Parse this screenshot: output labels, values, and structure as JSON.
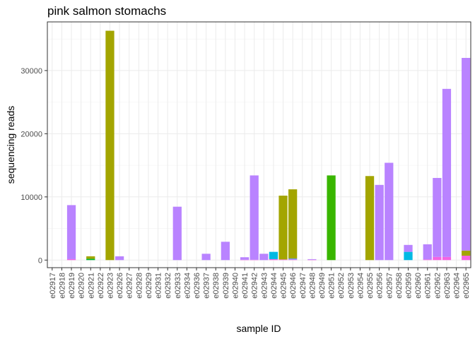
{
  "chart_data": {
    "type": "bar",
    "stacked": true,
    "title": "pink salmon stomachs",
    "xlabel": "sample ID",
    "ylabel": "sequencing reads",
    "ylim": [
      -1200,
      37700
    ],
    "yticks": [
      0,
      10000,
      20000,
      30000
    ],
    "grid": true,
    "legend": "none",
    "categories": [
      "e02917",
      "e02918",
      "e02919",
      "e02920",
      "e02921",
      "e02922",
      "e02923",
      "e02926",
      "e02927",
      "e02928",
      "e02929",
      "e02931",
      "e02932",
      "e02933",
      "e02934",
      "e02936",
      "e02937",
      "e02938",
      "e02939",
      "e02940",
      "e02941",
      "e02942",
      "e02943",
      "e02944",
      "e02945",
      "e02946",
      "e02947",
      "e02948",
      "e02949",
      "e02951",
      "e02952",
      "e02953",
      "e02954",
      "e02955",
      "e02956",
      "e02957",
      "e02958",
      "e02959",
      "e02960",
      "e02961",
      "e02962",
      "e02963",
      "e02964",
      "e02965"
    ],
    "series": [
      {
        "color": "#F564E3",
        "values": [
          0,
          0,
          150,
          0,
          0,
          0,
          0,
          0,
          0,
          0,
          0,
          0,
          0,
          0,
          0,
          0,
          0,
          0,
          0,
          0,
          50,
          50,
          0,
          150,
          100,
          100,
          0,
          50,
          0,
          0,
          0,
          0,
          0,
          0,
          0,
          0,
          0,
          0,
          0,
          100,
          500,
          500,
          0,
          700
        ]
      },
      {
        "color": "#619CFF",
        "values": [
          0,
          0,
          0,
          0,
          0,
          0,
          0,
          0,
          0,
          0,
          0,
          0,
          0,
          0,
          0,
          0,
          0,
          0,
          0,
          0,
          0,
          0,
          0,
          0,
          0,
          150,
          0,
          0,
          0,
          0,
          0,
          0,
          0,
          0,
          0,
          0,
          0,
          0,
          0,
          0,
          0,
          0,
          0,
          0
        ]
      },
      {
        "color": "#00B9E3",
        "values": [
          0,
          0,
          0,
          0,
          0,
          0,
          0,
          0,
          0,
          0,
          0,
          0,
          0,
          0,
          0,
          0,
          0,
          0,
          0,
          0,
          0,
          0,
          0,
          1150,
          0,
          0,
          0,
          0,
          0,
          0,
          0,
          0,
          0,
          0,
          0,
          0,
          0,
          1300,
          0,
          0,
          0,
          0,
          0,
          0
        ]
      },
      {
        "color": "#00BA38",
        "values": [
          0,
          0,
          0,
          0,
          200,
          0,
          0,
          0,
          0,
          0,
          0,
          0,
          0,
          0,
          0,
          0,
          0,
          0,
          0,
          0,
          0,
          0,
          0,
          0,
          0,
          0,
          0,
          0,
          0,
          0,
          0,
          0,
          0,
          0,
          0,
          0,
          0,
          0,
          0,
          0,
          0,
          0,
          0,
          0
        ]
      },
      {
        "color": "#39B600",
        "values": [
          0,
          0,
          0,
          0,
          0,
          0,
          0,
          0,
          0,
          0,
          0,
          0,
          0,
          0,
          0,
          0,
          0,
          0,
          0,
          0,
          0,
          0,
          0,
          0,
          0,
          0,
          0,
          0,
          0,
          13400,
          0,
          0,
          0,
          0,
          0,
          0,
          0,
          0,
          0,
          0,
          0,
          0,
          0,
          0
        ]
      },
      {
        "color": "#A3A500",
        "values": [
          0,
          0,
          0,
          0,
          400,
          0,
          36300,
          0,
          0,
          0,
          0,
          0,
          0,
          0,
          0,
          0,
          0,
          0,
          0,
          0,
          0,
          0,
          0,
          0,
          10100,
          10950,
          0,
          0,
          0,
          0,
          0,
          0,
          0,
          13300,
          0,
          0,
          0,
          0,
          0,
          0,
          0,
          0,
          0,
          800
        ]
      },
      {
        "color": "#B983FF",
        "values": [
          0,
          0,
          8550,
          0,
          0,
          0,
          0,
          600,
          0,
          0,
          0,
          0,
          0,
          8450,
          0,
          0,
          1000,
          0,
          2900,
          0,
          400,
          13350,
          1000,
          0,
          0,
          0,
          0,
          100,
          0,
          0,
          0,
          0,
          0,
          0,
          11900,
          15400,
          0,
          1100,
          0,
          2400,
          12500,
          26600,
          0,
          30500
        ]
      }
    ]
  }
}
